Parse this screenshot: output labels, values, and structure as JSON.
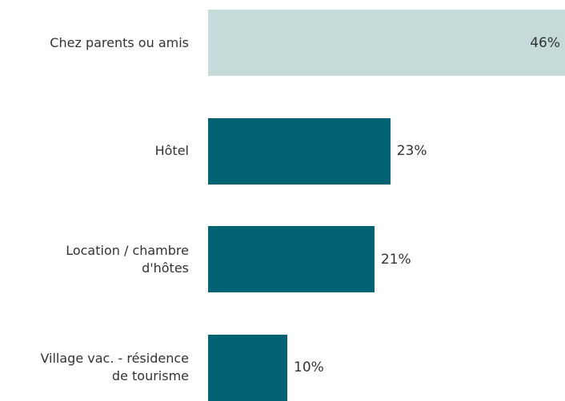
{
  "chart_data": {
    "type": "bar",
    "orientation": "horizontal",
    "categories": [
      "Chez parents ou amis",
      "Hôtel",
      "Location / chambre\nd'hôtes",
      "Village vac. - résidence\nde tourisme"
    ],
    "values": [
      46,
      23,
      21,
      10
    ],
    "value_labels": [
      "46%",
      "23%",
      "21%",
      "10%"
    ],
    "colors": [
      "#c4dbd9",
      "#006272",
      "#006272",
      "#006272"
    ]
  }
}
